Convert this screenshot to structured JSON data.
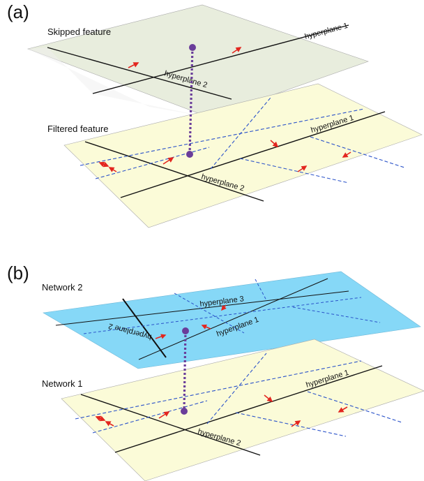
{
  "panels": {
    "a": {
      "letter": "(a)",
      "top_layer_label": "Skipped feature",
      "bottom_layer_label": "Filtered feature",
      "top_hyperplanes": [
        "hyperplane 1",
        "hyperplane 2"
      ],
      "bottom_hyperplanes": [
        "hyperplane 1",
        "hyperplane 2"
      ]
    },
    "b": {
      "letter": "(b)",
      "top_layer_label": "Network 2",
      "bottom_layer_label": "Network 1",
      "top_hyperplanes": [
        "hyperplane 3",
        "hyperplane 1",
        "hyperplane 2"
      ],
      "bottom_hyperplanes": [
        "hyperplane 1",
        "hyperplane 2"
      ]
    }
  },
  "colors": {
    "skipped_plane": "#e8eddd",
    "filtered_plane": "#fbfbd8",
    "network2_plane": "#86d8f7",
    "connector": "#6a3d9a",
    "arrow": "#e3261f",
    "dashed_line": "#2a52c9",
    "solid_line": "#111111"
  }
}
